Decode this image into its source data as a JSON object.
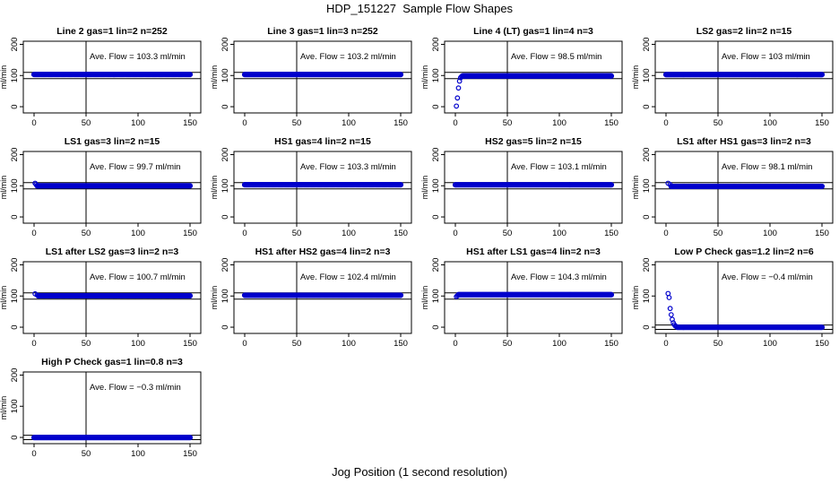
{
  "figure": {
    "title": "HDP_151227  Sample Flow Shapes",
    "xlabel": "Jog Position (1 second resolution)"
  },
  "colors": {
    "points": "#0000cc",
    "axis": "#000000",
    "background": "#ffffff"
  },
  "chart_data": [
    {
      "type": "scatter",
      "title": "Line 2 gas=1 lin=2 n=252",
      "annotation": "Ave. Flow = 103.3  ml/min",
      "ylabel": "ml/min",
      "xlim": [
        0,
        150
      ],
      "ylim": [
        -20,
        210
      ],
      "xticks": [
        0,
        50,
        100,
        150
      ],
      "yticks": [
        0,
        100,
        200
      ],
      "vline": 50,
      "hlines": [
        90,
        110
      ],
      "start": [],
      "level": 103.3,
      "x_end": 150
    },
    {
      "type": "scatter",
      "title": "Line 3 gas=1 lin=3 n=252",
      "annotation": "Ave. Flow = 103.2  ml/min",
      "ylabel": "ml/min",
      "xlim": [
        0,
        150
      ],
      "ylim": [
        -20,
        210
      ],
      "xticks": [
        0,
        50,
        100,
        150
      ],
      "yticks": [
        0,
        100,
        200
      ],
      "vline": 50,
      "hlines": [
        90,
        110
      ],
      "start": [],
      "level": 103.2,
      "x_end": 150
    },
    {
      "type": "scatter",
      "title": "Line 4 (LT) gas=1 lin=4 n=3",
      "annotation": "Ave. Flow = 98.5  ml/min",
      "ylabel": "ml/min",
      "xlim": [
        0,
        150
      ],
      "ylim": [
        -20,
        210
      ],
      "xticks": [
        0,
        50,
        100,
        150
      ],
      "yticks": [
        0,
        100,
        200
      ],
      "vline": 50,
      "hlines": [
        90,
        110
      ],
      "start": [
        [
          1,
          2
        ],
        [
          2,
          28
        ],
        [
          3,
          60
        ],
        [
          4,
          82
        ],
        [
          5,
          93
        ],
        [
          6,
          97
        ]
      ],
      "level": 98.5,
      "x_end": 150
    },
    {
      "type": "scatter",
      "title": "LS2 gas=2 lin=2 n=15",
      "annotation": "Ave. Flow = 103  ml/min",
      "ylabel": "ml/min",
      "xlim": [
        0,
        150
      ],
      "ylim": [
        -20,
        210
      ],
      "xticks": [
        0,
        50,
        100,
        150
      ],
      "yticks": [
        0,
        100,
        200
      ],
      "vline": 50,
      "hlines": [
        90,
        110
      ],
      "start": [],
      "level": 103,
      "x_end": 150
    },
    {
      "type": "scatter",
      "title": "LS1 gas=3 lin=2 n=15",
      "annotation": "Ave. Flow = 99.7  ml/min",
      "ylabel": "ml/min",
      "xlim": [
        0,
        150
      ],
      "ylim": [
        -20,
        210
      ],
      "xticks": [
        0,
        50,
        100,
        150
      ],
      "yticks": [
        0,
        100,
        200
      ],
      "vline": 50,
      "hlines": [
        90,
        110
      ],
      "start": [
        [
          1,
          108
        ],
        [
          2,
          104
        ]
      ],
      "level": 99.7,
      "x_end": 150
    },
    {
      "type": "scatter",
      "title": "HS1 gas=4 lin=2 n=15",
      "annotation": "Ave. Flow = 103.3  ml/min",
      "ylabel": "ml/min",
      "xlim": [
        0,
        150
      ],
      "ylim": [
        -20,
        210
      ],
      "xticks": [
        0,
        50,
        100,
        150
      ],
      "yticks": [
        0,
        100,
        200
      ],
      "vline": 50,
      "hlines": [
        90,
        110
      ],
      "start": [],
      "level": 103.3,
      "x_end": 150
    },
    {
      "type": "scatter",
      "title": "HS2 gas=5 lin=2 n=15",
      "annotation": "Ave. Flow = 103.1  ml/min",
      "ylabel": "ml/min",
      "xlim": [
        0,
        150
      ],
      "ylim": [
        -20,
        210
      ],
      "xticks": [
        0,
        50,
        100,
        150
      ],
      "yticks": [
        0,
        100,
        200
      ],
      "vline": 50,
      "hlines": [
        90,
        110
      ],
      "start": [],
      "level": 103.1,
      "x_end": 150
    },
    {
      "type": "scatter",
      "title": "LS1 after HS1 gas=3 lin=2 n=3",
      "annotation": "Ave. Flow = 98.1  ml/min",
      "ylabel": "ml/min",
      "xlim": [
        0,
        150
      ],
      "ylim": [
        -20,
        210
      ],
      "xticks": [
        0,
        50,
        100,
        150
      ],
      "yticks": [
        0,
        100,
        200
      ],
      "vline": 50,
      "hlines": [
        90,
        110
      ],
      "start": [
        [
          2,
          108
        ],
        [
          4,
          104
        ]
      ],
      "level": 98.1,
      "x_end": 150
    },
    {
      "type": "scatter",
      "title": "LS1 after LS2 gas=3 lin=2 n=3",
      "annotation": "Ave. Flow = 100.7  ml/min",
      "ylabel": "ml/min",
      "xlim": [
        0,
        150
      ],
      "ylim": [
        -20,
        210
      ],
      "xticks": [
        0,
        50,
        100,
        150
      ],
      "yticks": [
        0,
        100,
        200
      ],
      "vline": 50,
      "hlines": [
        90,
        110
      ],
      "start": [
        [
          1,
          107
        ],
        [
          3,
          103
        ]
      ],
      "level": 100.7,
      "x_end": 150
    },
    {
      "type": "scatter",
      "title": "HS1 after HS2 gas=4 lin=2 n=3",
      "annotation": "Ave. Flow = 102.4  ml/min",
      "ylabel": "ml/min",
      "xlim": [
        0,
        150
      ],
      "ylim": [
        -20,
        210
      ],
      "xticks": [
        0,
        50,
        100,
        150
      ],
      "yticks": [
        0,
        100,
        200
      ],
      "vline": 50,
      "hlines": [
        90,
        110
      ],
      "start": [],
      "level": 102.4,
      "x_end": 150
    },
    {
      "type": "scatter",
      "title": "HS1 after LS1 gas=4 lin=2 n=3",
      "annotation": "Ave. Flow = 104.3  ml/min",
      "ylabel": "ml/min",
      "xlim": [
        0,
        150
      ],
      "ylim": [
        -20,
        210
      ],
      "xticks": [
        0,
        50,
        100,
        150
      ],
      "yticks": [
        0,
        100,
        200
      ],
      "vline": 50,
      "hlines": [
        90,
        110
      ],
      "start": [
        [
          1,
          98
        ],
        [
          2,
          101
        ]
      ],
      "level": 104.3,
      "x_end": 150
    },
    {
      "type": "scatter",
      "title": "Low P Check gas=1.2 lin=2 n=6",
      "annotation": "Ave. Flow = −0.4  ml/min",
      "ylabel": "ml/min",
      "xlim": [
        0,
        150
      ],
      "ylim": [
        -20,
        210
      ],
      "xticks": [
        0,
        50,
        100,
        150
      ],
      "yticks": [
        0,
        100,
        200
      ],
      "vline": 50,
      "hlines": [
        -7,
        7
      ],
      "start": [
        [
          2,
          108
        ],
        [
          3,
          95
        ],
        [
          4,
          60
        ],
        [
          5,
          40
        ],
        [
          6,
          25
        ],
        [
          7,
          14
        ],
        [
          8,
          8
        ],
        [
          9,
          4
        ],
        [
          10,
          2
        ]
      ],
      "level": -0.4,
      "x_end": 150
    },
    {
      "type": "scatter",
      "title": "High P Check gas=1 lin=0.8 n=3",
      "annotation": "Ave. Flow = −0.3  ml/min",
      "ylabel": "ml/min",
      "xlim": [
        0,
        150
      ],
      "ylim": [
        -20,
        210
      ],
      "xticks": [
        0,
        50,
        100,
        150
      ],
      "yticks": [
        0,
        100,
        200
      ],
      "vline": 50,
      "hlines": [
        -7,
        7
      ],
      "start": [],
      "level": -0.3,
      "x_end": 150
    }
  ]
}
